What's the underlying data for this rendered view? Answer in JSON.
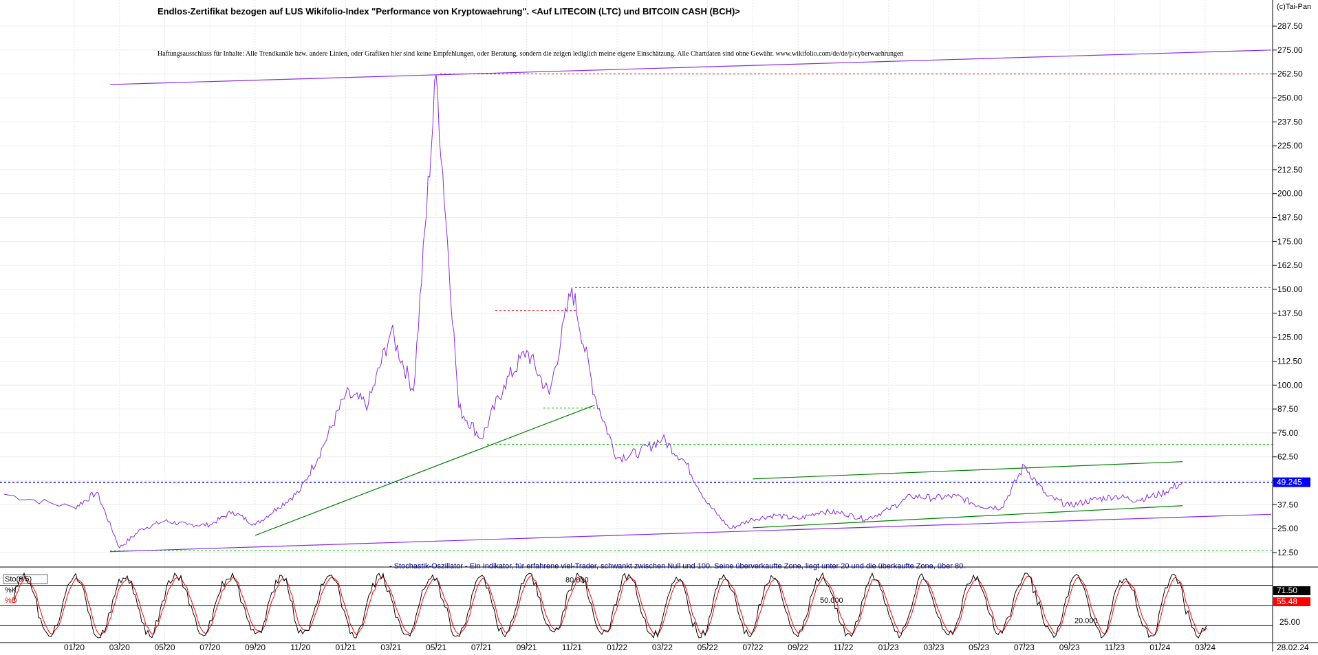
{
  "header": {
    "title": "Endlos-Zertifikat bezogen auf LUS Wikifolio-Index \"Performance von Kryptowaehrung\". <Auf LITECOIN (LTC) und BITCOIN CASH (BCH)>",
    "disclaimer": "Haftungsausschluss für Inhalte: Alle Trendkanäle bzw. andere Linien, oder Grafiken hier sind keine Empfehlungen, oder Beratung, sondern die zeigen lediglich meine eigene Einschätzung. Alle Chartdaten sind ohne Gewähr. www.wikifolio.com/de/de/p/cyberwaehrungen",
    "copyright": "(c)Tai-Pan"
  },
  "oscillator": {
    "caption": "- Stochastik-Oszillator - Ein Indikator, für erfahrene viel-Trader, schwankt zwischen Null und 100. Seine überverkaufte Zone, liegt unter 20 und die überkaufte Zone, über 80.",
    "name": "Sto(9/5)",
    "k_label": "%K",
    "d_label": "%D",
    "level_80": "80.000",
    "level_50": "50.000",
    "level_20": "20.000",
    "tag_k": "71.50",
    "tag_d": "55.48",
    "axis_25": "25.00",
    "colors": {
      "k": "#000000",
      "d": "#ff0000"
    }
  },
  "price_tag": "49.245",
  "last_date": "28.02.24",
  "chart_data": [
    {
      "type": "line",
      "title": "Endlos-Zertifikat bezogen auf LUS Wikifolio-Index \"Performance von Kryptowaehrung\". <Auf LITECOIN (LTC) und BITCOIN CASH (BCH)>",
      "ylim": [
        5,
        297
      ],
      "y_ticks": [
        12.5,
        25.0,
        37.5,
        50.0,
        62.5,
        75.0,
        87.5,
        100.0,
        112.5,
        125.0,
        137.5,
        150.0,
        162.5,
        175.0,
        187.5,
        200.0,
        212.5,
        225.0,
        237.5,
        250.0,
        262.5,
        275.0,
        287.5
      ],
      "y_tick_labels": [
        "12.50",
        "25.00",
        "37.50",
        "50.00",
        "62.50",
        "75.00",
        "87.50",
        "100.00",
        "112.50",
        "125.00",
        "137.50",
        "150.00",
        "162.50",
        "175.00",
        "187.50",
        "200.00",
        "212.50",
        "225.00",
        "237.50",
        "250.00",
        "262.50",
        "275.00",
        "287.50"
      ],
      "x_tick_labels": [
        "01/20",
        "03/20",
        "05/20",
        "07/20",
        "09/20",
        "11/20",
        "01/21",
        "03/21",
        "05/21",
        "07/21",
        "09/21",
        "11/21",
        "01/22",
        "03/22",
        "05/22",
        "07/22",
        "09/22",
        "11/22",
        "01/23",
        "03/23",
        "05/23",
        "07/23",
        "09/23",
        "11/23",
        "01/24",
        "03/24"
      ],
      "x_range": [
        "11.2019",
        "03.2024"
      ],
      "series": [
        {
          "color": "#8a2be2",
          "x": [
            "12.2019",
            "01.2020",
            "02.2020",
            "03.2020",
            "04.2020",
            "05.2020",
            "06.2020",
            "07.2020",
            "08.2020",
            "09.2020",
            "10.2020",
            "11.2020",
            "12.2020",
            "01.2021",
            "02.2021",
            "03.2021",
            "04.2021",
            "05.2021",
            "06.2021",
            "07.2021",
            "08.2021",
            "09.2021",
            "10.2021",
            "11.2021",
            "12.2021",
            "01.2022",
            "02.2022",
            "03.2022",
            "04.2022",
            "05.2022",
            "06.2022",
            "07.2022",
            "08.2022",
            "09.2022",
            "10.2022",
            "11.2022",
            "12.2022",
            "01.2023",
            "02.2023",
            "03.2023",
            "04.2023",
            "05.2023",
            "06.2023",
            "07.2023",
            "08.2023",
            "09.2023",
            "10.2023",
            "11.2023",
            "12.2023",
            "01.2024",
            "02.2024"
          ],
          "values": [
            43,
            36,
            44,
            15,
            25,
            29,
            27,
            27,
            34,
            27,
            36,
            45,
            68,
            95,
            90,
            128,
            97,
            262,
            88,
            72,
            100,
            118,
            95,
            151,
            95,
            62,
            65,
            72,
            60,
            38,
            25,
            30,
            32,
            30,
            34,
            33,
            30,
            35,
            42,
            41,
            42,
            37,
            36,
            58,
            42,
            37,
            40,
            42,
            40,
            43,
            49
          ]
        }
      ],
      "annotations": [
        {
          "kind": "resistance",
          "value": 262.5,
          "color": "#ff0000"
        },
        {
          "kind": "resistance",
          "value": 151,
          "color": "#ff0000"
        },
        {
          "kind": "resistance",
          "value": 139,
          "color": "#ff0000"
        },
        {
          "kind": "support",
          "value": 88,
          "color": "#00cc00"
        },
        {
          "kind": "support",
          "value": 69,
          "color": "#00cc00"
        },
        {
          "kind": "support",
          "value": 13.5,
          "color": "#00cc00"
        },
        {
          "kind": "last-price",
          "value": 49.245,
          "color": "#0000ff"
        }
      ],
      "trendlines": [
        {
          "color": "#8a2be2",
          "from": [
            "12.2019",
            257
          ],
          "to": [
            "03.2024",
            275
          ]
        },
        {
          "color": "#8a2be2",
          "from": [
            "12.2019",
            13
          ],
          "to": [
            "03.2024",
            32.5
          ]
        },
        {
          "color": "#008000",
          "from": [
            "09.2020",
            21.5
          ],
          "to": [
            "12.2021",
            89.5
          ]
        },
        {
          "color": "#008000",
          "from": [
            "07.2022",
            51
          ],
          "to": [
            "02.2024",
            60
          ]
        },
        {
          "color": "#008000",
          "from": [
            "07.2022",
            25.5
          ],
          "to": [
            "02.2024",
            37
          ]
        }
      ]
    },
    {
      "type": "line",
      "title": "Sto(9/5)",
      "ylim": [
        0,
        100
      ],
      "y_ticks": [
        25
      ],
      "reference_levels": [
        20,
        50,
        80
      ],
      "series": [
        {
          "name": "%K",
          "color": "#000000"
        },
        {
          "name": "%D",
          "color": "#ff0000"
        }
      ],
      "last_values": {
        "%K": 71.5,
        "%D": 55.48
      }
    }
  ]
}
